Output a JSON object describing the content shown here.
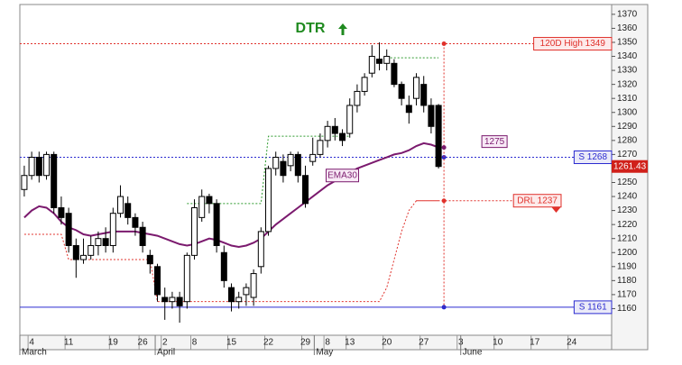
{
  "chart_data": {
    "type": "candlestick",
    "title": "DTR",
    "x": [
      0,
      1,
      2,
      3,
      4,
      5,
      6,
      7,
      8,
      9,
      10,
      11,
      12,
      13,
      14,
      15,
      16,
      17,
      18,
      19,
      20,
      21,
      22,
      23,
      24,
      25,
      26,
      27,
      28,
      29,
      30,
      31,
      32,
      33,
      34,
      35,
      36,
      37,
      38,
      39,
      40,
      41,
      42,
      43,
      44,
      45,
      46,
      47,
      48,
      49,
      50,
      51,
      52,
      53,
      54,
      55,
      56
    ],
    "open": [
      1245,
      1255,
      1268,
      1255,
      1270,
      1232,
      1228,
      1205,
      1195,
      1198,
      1205,
      1210,
      1205,
      1228,
      1235,
      1225,
      1218,
      1198,
      1190,
      1168,
      1165,
      1168,
      1165,
      1198,
      1225,
      1240,
      1235,
      1200,
      1175,
      1165,
      1170,
      1168,
      1190,
      1215,
      1260,
      1265,
      1262,
      1270,
      1255,
      1265,
      1270,
      1280,
      1290,
      1285,
      1285,
      1305,
      1315,
      1328,
      1338,
      1335,
      1335,
      1320,
      1305,
      1310,
      1320,
      1305,
      1305
    ],
    "high": [
      1262,
      1272,
      1272,
      1272,
      1272,
      1240,
      1232,
      1210,
      1210,
      1212,
      1215,
      1218,
      1232,
      1248,
      1240,
      1228,
      1222,
      1202,
      1192,
      1175,
      1172,
      1172,
      1200,
      1238,
      1245,
      1242,
      1238,
      1205,
      1178,
      1172,
      1178,
      1188,
      1218,
      1262,
      1272,
      1270,
      1272,
      1272,
      1262,
      1282,
      1285,
      1294,
      1296,
      1288,
      1310,
      1320,
      1328,
      1348,
      1350,
      1345,
      1338,
      1322,
      1312,
      1328,
      1326,
      1310,
      1306
    ],
    "low": [
      1240,
      1252,
      1250,
      1252,
      1228,
      1220,
      1200,
      1182,
      1192,
      1195,
      1198,
      1200,
      1200,
      1225,
      1220,
      1212,
      1200,
      1185,
      1165,
      1152,
      1160,
      1150,
      1160,
      1195,
      1222,
      1228,
      1200,
      1175,
      1158,
      1160,
      1162,
      1162,
      1185,
      1212,
      1255,
      1250,
      1258,
      1250,
      1232,
      1262,
      1268,
      1275,
      1280,
      1276,
      1282,
      1300,
      1312,
      1325,
      1330,
      1330,
      1318,
      1305,
      1292,
      1305,
      1300,
      1285,
      1260
    ],
    "close": [
      1255,
      1268,
      1255,
      1270,
      1232,
      1225,
      1205,
      1195,
      1198,
      1205,
      1210,
      1205,
      1228,
      1240,
      1225,
      1218,
      1205,
      1192,
      1170,
      1165,
      1168,
      1162,
      1198,
      1232,
      1240,
      1235,
      1205,
      1180,
      1165,
      1168,
      1175,
      1185,
      1215,
      1260,
      1268,
      1255,
      1270,
      1255,
      1235,
      1270,
      1280,
      1290,
      1285,
      1280,
      1305,
      1315,
      1325,
      1340,
      1335,
      1340,
      1320,
      1310,
      1300,
      1325,
      1305,
      1290,
      1261.43
    ],
    "up_color": "#ffffff",
    "down_color": "#000000",
    "lines": [
      {
        "name": "EMA30",
        "color": "#7b1a6e",
        "style": "solid",
        "values": [
          1225,
          1230,
          1233,
          1232,
          1228,
          1222,
          1218,
          1216,
          1213,
          1212,
          1213,
          1214,
          1215,
          1215,
          1215,
          1215,
          1214,
          1213,
          1212,
          1210,
          1208,
          1206,
          1205,
          1206,
          1208,
          1210,
          1209,
          1207,
          1205,
          1204,
          1205,
          1207,
          1210,
          1215,
          1220,
          1224,
          1228,
          1232,
          1236,
          1240,
          1244,
          1248,
          1251,
          1254,
          1257,
          1260,
          1262,
          1264,
          1266,
          1268,
          1270,
          1271,
          1273,
          1276,
          1278,
          1277,
          1275
        ]
      },
      {
        "color": "#e0312b",
        "style": "dotted",
        "values": [
          1213,
          1213,
          1213,
          1213,
          1213,
          1213,
          1195,
          1195,
          1195,
          1195,
          1195,
          1195,
          1195,
          1195,
          1195,
          1195,
          1195,
          1195,
          1165,
          1165,
          1165,
          1165,
          1165,
          1165,
          1165,
          1165,
          1165,
          1165,
          1165,
          1165,
          1165,
          1165,
          1165,
          1165,
          1165,
          1165,
          1165,
          1165,
          1165,
          1165,
          1165,
          1165,
          1165,
          1165,
          1165,
          1165,
          1165,
          1165,
          1165,
          1175,
          1195,
          1215,
          1230,
          1237,
          1237,
          1237,
          1237
        ]
      },
      {
        "color": "#2e9a2e",
        "style": "dotted",
        "values": [
          null,
          null,
          null,
          null,
          null,
          null,
          null,
          null,
          null,
          null,
          null,
          null,
          null,
          null,
          null,
          null,
          null,
          null,
          null,
          null,
          null,
          null,
          1235,
          1235,
          1235,
          1235,
          1235,
          1235,
          1235,
          1235,
          1235,
          1235,
          1235,
          1283,
          1283,
          1283,
          1283,
          1283,
          1283,
          1283,
          1283,
          1283,
          1283,
          1283,
          1283,
          null,
          null,
          null,
          null,
          1339,
          1339,
          1339,
          1339,
          1339,
          1339,
          1339,
          1339
        ]
      }
    ],
    "levels": [
      {
        "label": "120D High 1349",
        "value": 1349,
        "color": "#e0312b",
        "style": "dotted"
      },
      {
        "label": "S 1268",
        "value": 1268,
        "color": "#2b2bd0",
        "style": "dotted"
      },
      {
        "label": "S 1161",
        "value": 1161,
        "color": "#2b2bd0",
        "style": "solid"
      },
      {
        "label": "DRL 1237",
        "value": 1237,
        "color": "#e0312b",
        "style": "dotted"
      }
    ],
    "annotations": [
      {
        "label": "1275",
        "value": 1275,
        "color": "#7b1a6e"
      },
      {
        "label": "EMA30",
        "value": 1255,
        "color": "#7b1a6e"
      }
    ],
    "last_price": {
      "value": 1261.43,
      "label": "1261.43"
    },
    "xlim": [
      -0.6,
      79.4
    ],
    "xticks": [
      {
        "value": 1,
        "label": "4"
      },
      {
        "value": 6,
        "label": "11"
      },
      {
        "value": 12,
        "label": "19"
      },
      {
        "value": 16,
        "label": "26"
      },
      {
        "value": 19,
        "label": "2"
      },
      {
        "value": 23,
        "label": "8"
      },
      {
        "value": 28,
        "label": "15"
      },
      {
        "value": 33,
        "label": "22"
      },
      {
        "value": 38,
        "label": "29"
      },
      {
        "value": 41,
        "label": "8"
      },
      {
        "value": 44,
        "label": "13"
      },
      {
        "value": 49,
        "label": "20"
      },
      {
        "value": 54,
        "label": "27"
      },
      {
        "value": 59,
        "label": "3"
      },
      {
        "value": 64,
        "label": "10"
      },
      {
        "value": 69,
        "label": "17"
      },
      {
        "value": 74,
        "label": "24"
      }
    ],
    "months": [
      {
        "value": -0.6,
        "label": "March"
      },
      {
        "value": 17.7,
        "label": "April"
      },
      {
        "value": 39.2,
        "label": "May"
      },
      {
        "value": 59,
        "label": "June"
      }
    ],
    "ylim": [
      1141,
      1377
    ],
    "yticks": [
      1160,
      1170,
      1180,
      1190,
      1200,
      1210,
      1220,
      1230,
      1240,
      1250,
      1260,
      1270,
      1280,
      1290,
      1300,
      1310,
      1320,
      1330,
      1340,
      1350,
      1360,
      1370
    ]
  }
}
